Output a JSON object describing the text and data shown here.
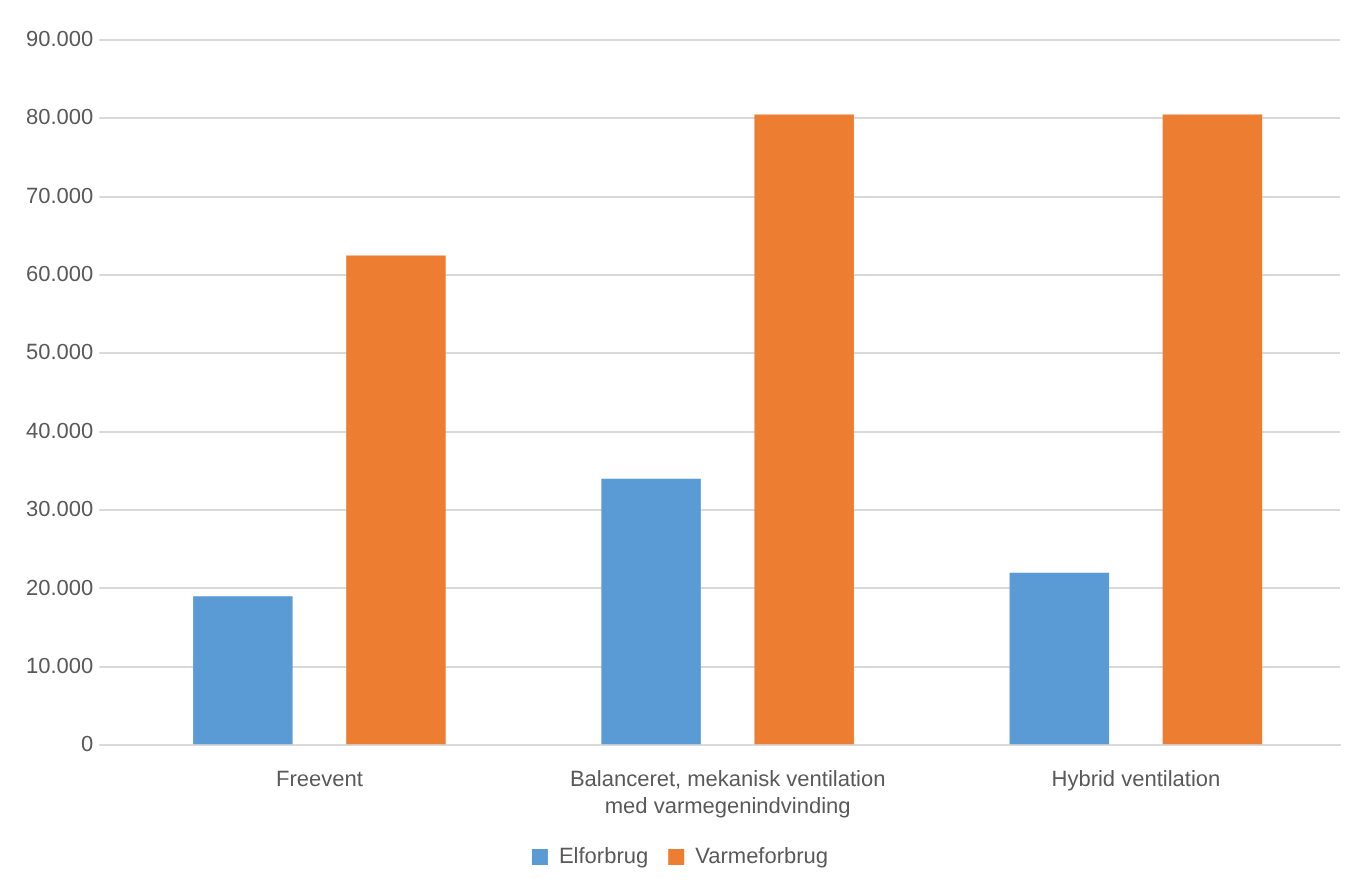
{
  "chart_data": {
    "type": "bar",
    "categories": [
      "Freevent",
      "Balanceret, mekanisk ventilation med varmegenindvinding",
      "Hybrid ventilation"
    ],
    "series": [
      {
        "name": "Elforbrug",
        "color": "#5b9bd5",
        "values": [
          19000,
          34000,
          22000
        ]
      },
      {
        "name": "Varmeforbrug",
        "color": "#ed7d31",
        "values": [
          62500,
          80500,
          80500
        ]
      }
    ],
    "ylim": [
      0,
      90000
    ],
    "yticks": [
      {
        "value": 0,
        "label": "0"
      },
      {
        "value": 10000,
        "label": "10.000"
      },
      {
        "value": 20000,
        "label": "20.000"
      },
      {
        "value": 30000,
        "label": "30.000"
      },
      {
        "value": 40000,
        "label": "40.000"
      },
      {
        "value": 50000,
        "label": "50.000"
      },
      {
        "value": 60000,
        "label": "60.000"
      },
      {
        "value": 70000,
        "label": "70.000"
      },
      {
        "value": 80000,
        "label": "80.000"
      },
      {
        "value": 90000,
        "label": "90.000"
      }
    ],
    "grid": "y",
    "legend": "bottom"
  }
}
